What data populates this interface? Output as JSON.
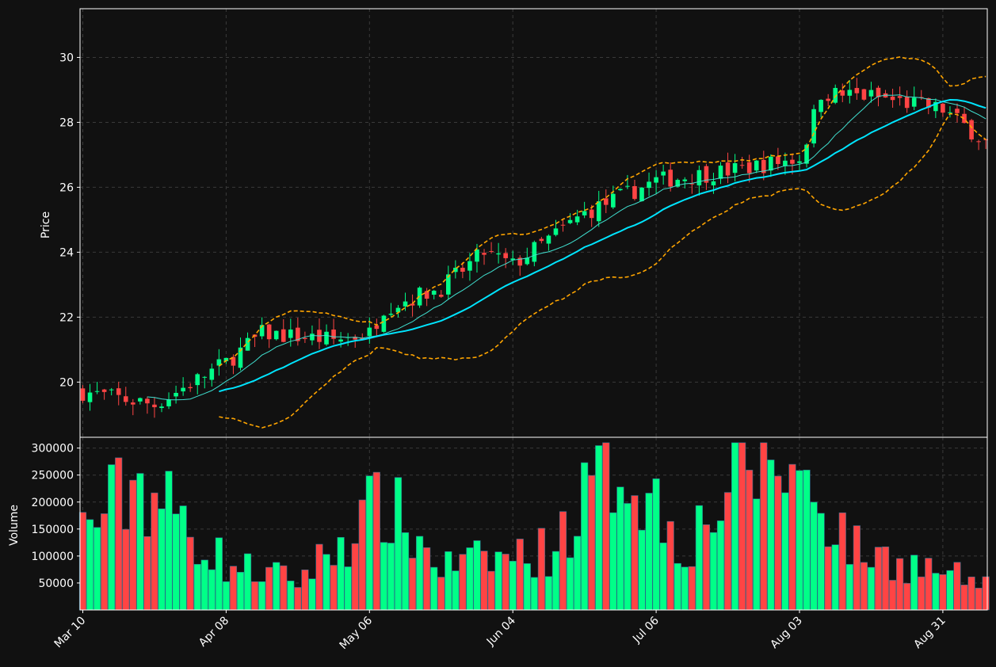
{
  "chart_data": {
    "type": "candlestick",
    "title": "",
    "price_panel": {
      "ylabel": "Price",
      "ylim": [
        18.3,
        31.5
      ],
      "yticks": [
        20,
        22,
        24,
        26,
        28,
        30
      ],
      "grid": true
    },
    "volume_panel": {
      "ylabel": "Volume",
      "ylim": [
        0,
        320000
      ],
      "yticks": [
        50000,
        100000,
        150000,
        200000,
        250000,
        300000
      ],
      "grid": true
    },
    "x_tick_labels": [
      "Mar 10",
      "Apr 08",
      "May 06",
      "Jun 04",
      "Jul 06",
      "Aug 03",
      "Aug 31"
    ],
    "x_tick_positions": [
      0,
      20,
      40,
      60,
      80,
      100,
      120
    ],
    "colors": {
      "background": "#111111",
      "up": "#00ff88",
      "down": "#ff4444",
      "ma_fast": "#40e0d0",
      "ma_slow": "#00e5ff",
      "bands": "#ffa500",
      "grid": "#3a3a3a",
      "frame": "#ffffff"
    },
    "ohlc_anchors": [
      [
        0,
        19.7
      ],
      [
        10,
        19.3
      ],
      [
        20,
        20.6
      ],
      [
        25,
        21.5
      ],
      [
        35,
        21.3
      ],
      [
        40,
        21.5
      ],
      [
        42,
        22.3
      ],
      [
        50,
        22.9
      ],
      [
        56,
        24.0
      ],
      [
        60,
        23.6
      ],
      [
        70,
        25.2
      ],
      [
        80,
        26.2
      ],
      [
        90,
        26.5
      ],
      [
        100,
        26.9
      ],
      [
        101,
        27.5
      ],
      [
        103,
        28.9
      ],
      [
        110,
        28.8
      ],
      [
        120,
        28.4
      ],
      [
        126,
        27.4
      ]
    ],
    "volume_anchors": [
      [
        0,
        150000
      ],
      [
        8,
        240000
      ],
      [
        20,
        85000
      ],
      [
        30,
        55000
      ],
      [
        42,
        200000
      ],
      [
        50,
        80000
      ],
      [
        65,
        110000
      ],
      [
        75,
        290000
      ],
      [
        84,
        120000
      ],
      [
        95,
        300000
      ],
      [
        102,
        220000
      ],
      [
        108,
        110000
      ],
      [
        120,
        70000
      ],
      [
        126,
        45000
      ]
    ]
  }
}
